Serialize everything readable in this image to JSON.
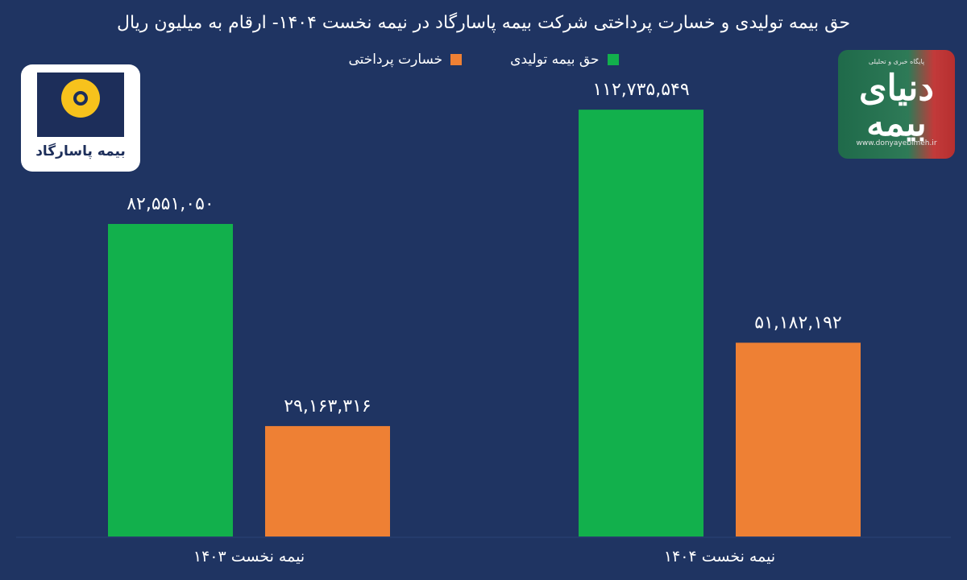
{
  "chart_data": {
    "type": "bar",
    "title": "حق بیمه تولیدی و خسارت پرداختی شرکت بیمه پاسارگاد در نیمه نخست ۱۴۰۴- ارقام به میلیون ریال",
    "categories": [
      "نیمه نخست ۱۴۰۳",
      "نیمه نخست ۱۴۰۴"
    ],
    "series": [
      {
        "name": "حق بیمه تولیدی",
        "values": [
          82551050,
          112735549
        ],
        "labels": [
          "۸۲,۵۵۱,۰۵۰",
          "۱۱۲,۷۳۵,۵۴۹"
        ],
        "color": "#12b04c"
      },
      {
        "name": "خسارت پرداختی",
        "values": [
          29163316,
          51182192
        ],
        "labels": [
          "۲۹,۱۶۳,۳۱۶",
          "۵۱,۱۸۲,۱۹۲"
        ],
        "color": "#ee8034"
      }
    ],
    "ylim": [
      0,
      130000000
    ],
    "grid": false,
    "legend": "top-center"
  },
  "logos": {
    "left_text": "بیمه پاسارگاد",
    "right_text": "دنیای بیمه",
    "right_url": "www.donyayebimeh.ir",
    "right_tagline": "پایگاه خبری و تحلیلی"
  },
  "colors": {
    "background": "#1f3462",
    "text": "#ffffff"
  }
}
